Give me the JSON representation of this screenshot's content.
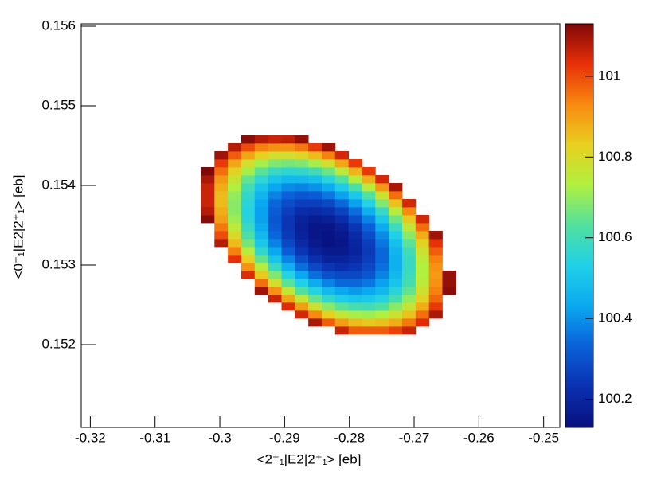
{
  "chart_data": {
    "type": "heatmap",
    "x_label": "<2⁺₁|E2|2⁺₁> [eb]",
    "y_label": "<0⁺₁|E2|2⁺₁> [eb]",
    "xbins": [
      -0.3029,
      -0.30083,
      -0.29876,
      -0.29669,
      -0.29462,
      -0.29255,
      -0.29048,
      -0.28841,
      -0.28634,
      -0.28427,
      -0.2822,
      -0.28013,
      -0.27806,
      -0.27599,
      -0.27392,
      -0.27185,
      -0.26978,
      -0.26771,
      -0.26564,
      -0.26357
    ],
    "ybins": [
      0.15213,
      0.15223,
      0.15233,
      0.15243,
      0.15253,
      0.15263,
      0.15273,
      0.15283,
      0.15293,
      0.15303,
      0.15313,
      0.15323,
      0.15333,
      0.15343,
      0.15353,
      0.15363,
      0.15373,
      0.15383,
      0.15393,
      0.15403,
      0.15413,
      0.15423,
      0.15433,
      0.15443,
      0.15453,
      0.15463
    ],
    "z": [
      [
        null,
        null,
        null,
        null,
        null,
        null,
        null,
        null,
        null,
        null,
        101.06,
        100.98,
        100.98,
        100.98,
        101.01,
        101.06,
        null,
        null,
        null
      ],
      [
        null,
        null,
        null,
        null,
        null,
        null,
        null,
        null,
        101.09,
        100.98,
        100.9,
        100.86,
        100.84,
        100.85,
        100.88,
        100.95,
        101.04,
        null,
        null
      ],
      [
        null,
        null,
        null,
        null,
        null,
        null,
        null,
        101.05,
        100.93,
        100.83,
        100.76,
        100.72,
        100.71,
        100.73,
        100.78,
        100.85,
        100.96,
        101.09,
        null
      ],
      [
        null,
        null,
        null,
        null,
        null,
        null,
        101.04,
        100.9,
        100.78,
        100.69,
        100.64,
        100.61,
        100.6,
        100.63,
        100.69,
        100.77,
        100.88,
        101.02,
        null
      ],
      [
        null,
        null,
        null,
        null,
        null,
        101.06,
        100.89,
        100.76,
        100.65,
        100.57,
        100.52,
        100.5,
        100.51,
        100.54,
        100.61,
        100.7,
        100.82,
        100.97,
        null
      ],
      [
        null,
        null,
        null,
        null,
        101.1,
        100.92,
        100.76,
        100.63,
        100.54,
        100.47,
        100.43,
        100.41,
        100.43,
        100.47,
        100.55,
        100.65,
        100.78,
        100.94,
        101.12
      ],
      [
        null,
        null,
        null,
        null,
        100.96,
        100.79,
        100.64,
        100.53,
        100.44,
        100.38,
        100.34,
        100.34,
        100.36,
        100.42,
        100.5,
        100.61,
        100.75,
        100.92,
        101.11
      ],
      [
        null,
        null,
        null,
        101.04,
        100.84,
        100.68,
        100.54,
        100.43,
        100.35,
        100.3,
        100.28,
        100.28,
        100.31,
        100.38,
        100.47,
        100.59,
        100.73,
        100.91,
        101.11
      ],
      [
        null,
        null,
        null,
        100.92,
        100.74,
        100.58,
        100.45,
        100.35,
        100.28,
        100.24,
        100.22,
        100.24,
        100.28,
        100.35,
        100.45,
        100.58,
        100.73,
        100.92,
        null
      ],
      [
        null,
        null,
        101.03,
        100.83,
        100.65,
        100.5,
        100.38,
        100.29,
        100.23,
        100.19,
        100.19,
        100.21,
        100.26,
        100.34,
        100.45,
        100.58,
        100.75,
        100.94,
        null
      ],
      [
        null,
        null,
        100.94,
        100.74,
        100.57,
        100.43,
        100.32,
        100.24,
        100.19,
        100.16,
        100.16,
        100.19,
        100.25,
        100.34,
        100.46,
        100.6,
        100.78,
        100.98,
        null
      ],
      [
        null,
        101.08,
        100.86,
        100.67,
        100.51,
        100.38,
        100.28,
        100.21,
        100.16,
        100.14,
        100.15,
        100.2,
        100.26,
        100.36,
        100.49,
        100.64,
        100.82,
        101.03,
        null
      ],
      [
        null,
        101.0,
        100.8,
        100.62,
        100.47,
        100.34,
        100.25,
        100.19,
        100.15,
        100.14,
        100.16,
        100.21,
        100.29,
        100.39,
        100.53,
        100.69,
        100.88,
        101.1,
        null
      ],
      [
        null,
        100.95,
        100.75,
        100.58,
        100.44,
        100.32,
        100.24,
        100.18,
        100.15,
        100.15,
        100.18,
        100.24,
        100.33,
        100.44,
        100.59,
        100.76,
        100.96,
        null,
        null
      ],
      [
        101.12,
        100.9,
        100.71,
        100.55,
        100.42,
        100.31,
        100.24,
        100.19,
        100.17,
        100.18,
        100.22,
        100.29,
        100.38,
        100.51,
        100.66,
        100.84,
        101.05,
        null,
        null
      ],
      [
        101.08,
        100.88,
        100.69,
        100.54,
        100.42,
        100.32,
        100.26,
        100.22,
        100.21,
        100.23,
        100.27,
        100.35,
        100.45,
        100.58,
        100.74,
        100.93,
        null,
        null,
        null
      ],
      [
        101.06,
        100.86,
        100.69,
        100.55,
        100.43,
        100.34,
        100.29,
        100.26,
        100.26,
        100.28,
        100.34,
        100.42,
        100.54,
        100.68,
        100.85,
        101.05,
        null,
        null,
        null
      ],
      [
        101.06,
        100.86,
        100.7,
        100.57,
        100.46,
        100.38,
        100.33,
        100.31,
        100.32,
        100.36,
        100.42,
        100.51,
        100.63,
        100.78,
        100.96,
        null,
        null,
        null,
        null
      ],
      [
        101.06,
        100.88,
        100.73,
        100.6,
        100.5,
        100.43,
        100.39,
        100.38,
        100.4,
        100.44,
        100.52,
        100.62,
        100.75,
        100.91,
        101.09,
        null,
        null,
        null,
        null
      ],
      [
        101.09,
        100.91,
        100.77,
        100.65,
        100.56,
        100.5,
        100.47,
        100.47,
        100.49,
        100.55,
        100.63,
        100.74,
        100.88,
        101.05,
        null,
        null,
        null,
        null,
        null
      ],
      [
        101.13,
        100.96,
        100.82,
        100.72,
        100.64,
        100.58,
        100.56,
        100.57,
        100.6,
        100.66,
        100.75,
        100.87,
        101.02,
        null,
        null,
        null,
        null,
        null,
        null
      ],
      [
        null,
        101.02,
        100.89,
        100.79,
        100.72,
        100.68,
        100.67,
        100.68,
        100.72,
        100.79,
        100.89,
        101.02,
        null,
        null,
        null,
        null,
        null,
        null,
        null
      ],
      [
        null,
        101.1,
        100.98,
        100.89,
        100.83,
        100.79,
        100.79,
        100.81,
        100.86,
        100.94,
        101.05,
        null,
        null,
        null,
        null,
        null,
        null,
        null,
        null
      ],
      [
        null,
        null,
        101.08,
        101.0,
        100.94,
        100.92,
        100.92,
        100.95,
        101.02,
        101.1,
        null,
        null,
        null,
        null,
        null,
        null,
        null,
        null,
        null
      ],
      [
        null,
        null,
        null,
        101.12,
        101.08,
        101.06,
        101.07,
        101.11,
        null,
        null,
        null,
        null,
        null,
        null,
        null,
        null,
        null,
        null,
        null
      ]
    ],
    "xlim": [
      -0.3214,
      -0.2475
    ],
    "xticks": [
      -0.32,
      -0.31,
      -0.3,
      -0.29,
      -0.28,
      -0.27,
      -0.26,
      -0.25
    ],
    "ylim": [
      0.15096,
      0.15603
    ],
    "yticks": [
      0.152,
      0.153,
      0.154,
      0.155,
      0.156
    ],
    "zlim": [
      100.13,
      101.13
    ],
    "zticks": [
      100.2,
      100.4,
      100.6,
      100.8,
      101
    ],
    "colormap": [
      "#08107e",
      "#0a30b0",
      "#0a60d8",
      "#0aa8f0",
      "#20d0e8",
      "#50e0a0",
      "#b0f040",
      "#e8d020",
      "#f88a10",
      "#e83008",
      "#800808"
    ]
  }
}
